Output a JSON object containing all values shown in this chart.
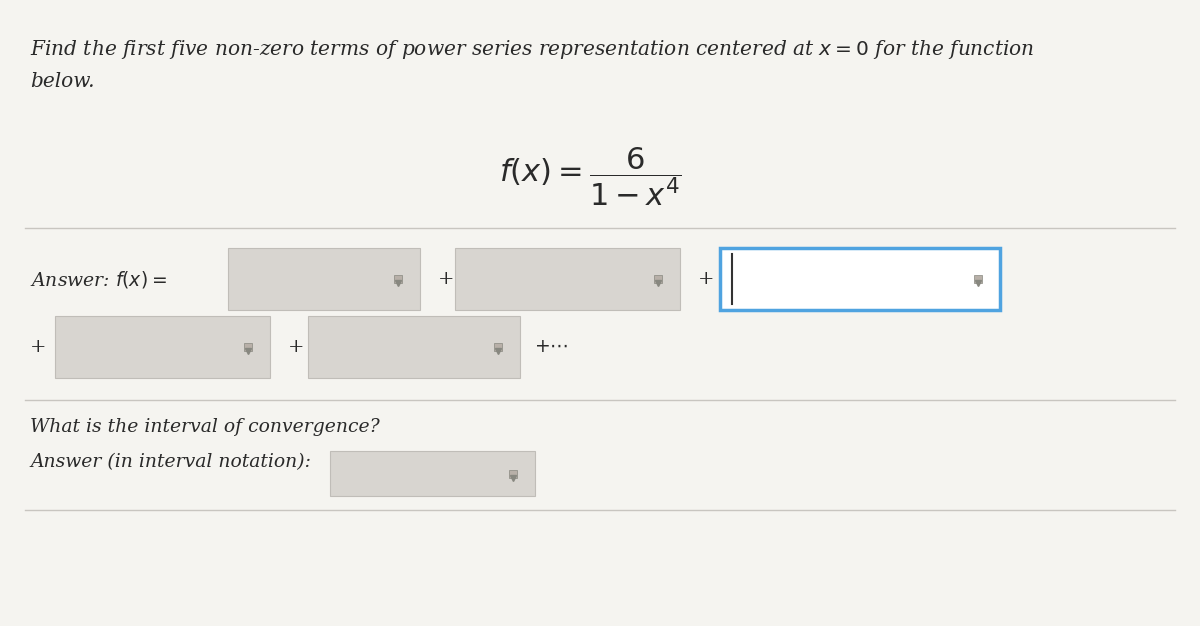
{
  "bg_color": "#f5f4f0",
  "text_color": "#2a2a2a",
  "divider_color": "#c8c5c0",
  "box_normal_color": "#d8d5d0",
  "box_normal_edge": "#c0bdb8",
  "box_highlight_color": "#ffffff",
  "box_highlight_edge": "#4fa3e0",
  "line1": "Find the first five non-zero terms of power series representation centered at $x = 0$ for the function",
  "line2": "below.",
  "function_str": "$f(x) = \\dfrac{6}{1-x^4}$",
  "answer_label": "Answer: $f(x) =$",
  "conv_q": "What is the interval of convergence?",
  "conv_a": "Answer (in interval notation):",
  "plus": "+",
  "dots": "$+\\cdots$"
}
